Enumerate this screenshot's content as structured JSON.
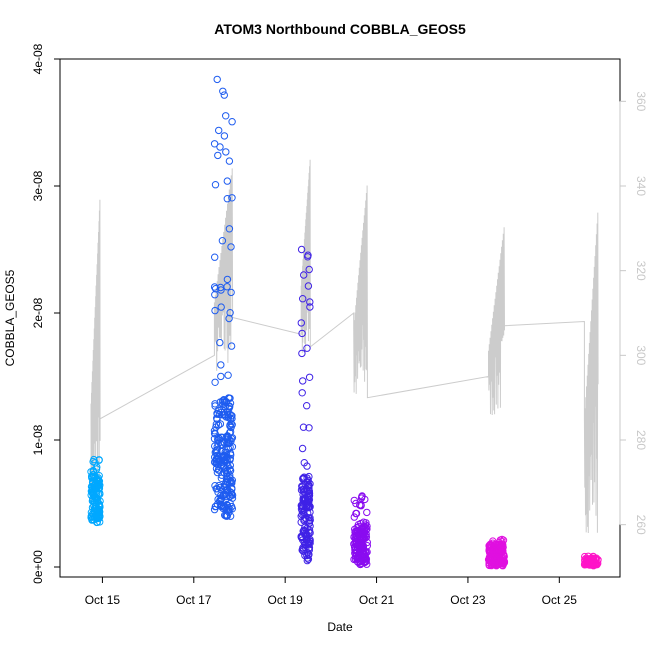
{
  "chart_data": {
    "type": "scatter",
    "title": "ATOM3 Northbound COBBLA_GEOS5",
    "xlabel": "Date",
    "ylabel": "COBBLA_GEOS5",
    "x_ticks": [
      {
        "day": 15,
        "label": "Oct 15"
      },
      {
        "day": 17,
        "label": "Oct 17"
      },
      {
        "day": 19,
        "label": "Oct 19"
      },
      {
        "day": 21,
        "label": "Oct 21"
      },
      {
        "day": 23,
        "label": "Oct 23"
      },
      {
        "day": 25,
        "label": "Oct 25"
      }
    ],
    "xlim": [
      14.4,
      26.0
    ],
    "ylim": [
      0,
      4e-08
    ],
    "y_ticks": [
      {
        "value": 0,
        "label": "0e+00"
      },
      {
        "value": 1e-08,
        "label": "1e-08"
      },
      {
        "value": 2e-08,
        "label": "2e-08"
      },
      {
        "value": 3e-08,
        "label": "3e-08"
      },
      {
        "value": 4e-08,
        "label": "4e-08"
      }
    ],
    "y2lim": [
      250,
      370
    ],
    "y2_ticks": [
      {
        "value": 260,
        "label": "260"
      },
      {
        "value": 280,
        "label": "280"
      },
      {
        "value": 300,
        "label": "300"
      },
      {
        "value": 320,
        "label": "320"
      },
      {
        "value": 340,
        "label": "340"
      },
      {
        "value": 360,
        "label": "360"
      }
    ],
    "clusters": [
      {
        "x0": 14.75,
        "x1": 14.95,
        "y_low": 3.5e-09,
        "y_high": 8.5e-09,
        "y_mean": 5.5e-09,
        "color": "#00a8ff",
        "n": 130
      },
      {
        "x0": 17.45,
        "x1": 17.85,
        "y_low": 4e-09,
        "y_high": 3.85e-08,
        "y_mean": 9e-09,
        "color": "#1e5cf0",
        "n": 260
      },
      {
        "x0": 19.35,
        "x1": 19.55,
        "y_low": 5e-10,
        "y_high": 2.5e-08,
        "y_mean": 4e-09,
        "color": "#3f22e6",
        "n": 160
      },
      {
        "x0": 20.5,
        "x1": 20.8,
        "y_low": 2e-10,
        "y_high": 5.8e-09,
        "y_mean": 1.8e-09,
        "color": "#8a0cf0",
        "n": 160
      },
      {
        "x0": 23.45,
        "x1": 23.8,
        "y_low": 1e-10,
        "y_high": 2.2e-09,
        "y_mean": 1e-09,
        "color": "#e010e0",
        "n": 180
      },
      {
        "x0": 25.55,
        "x1": 25.85,
        "y_low": 1e-10,
        "y_high": 9e-10,
        "y_mean": 4e-10,
        "color": "#ff14c8",
        "n": 70
      }
    ],
    "line_series": {
      "color": "#cccccc",
      "axis": "right",
      "segments": [
        {
          "x0": 14.75,
          "x1": 14.95,
          "low": 262,
          "high": 338
        },
        {
          "x0": 17.45,
          "x1": 17.85,
          "low": 295,
          "high": 345
        },
        {
          "x0": 19.35,
          "x1": 19.55,
          "low": 300,
          "high": 347
        },
        {
          "x0": 20.5,
          "x1": 20.8,
          "low": 288,
          "high": 341
        },
        {
          "x0": 23.45,
          "x1": 23.8,
          "low": 285,
          "high": 331
        },
        {
          "x0": 25.55,
          "x1": 25.85,
          "low": 258,
          "high": 335
        }
      ],
      "connectors": [
        {
          "x": 14.95,
          "y": 285
        },
        {
          "x": 17.45,
          "y": 300
        },
        {
          "x": 19.35,
          "y": 305
        },
        {
          "x": 19.55,
          "y": 302
        },
        {
          "x": 20.5,
          "y": 310
        },
        {
          "x": 20.8,
          "y": 290
        },
        {
          "x": 23.45,
          "y": 295
        },
        {
          "x": 23.8,
          "y": 307
        },
        {
          "x": 25.55,
          "y": 308
        }
      ]
    }
  }
}
